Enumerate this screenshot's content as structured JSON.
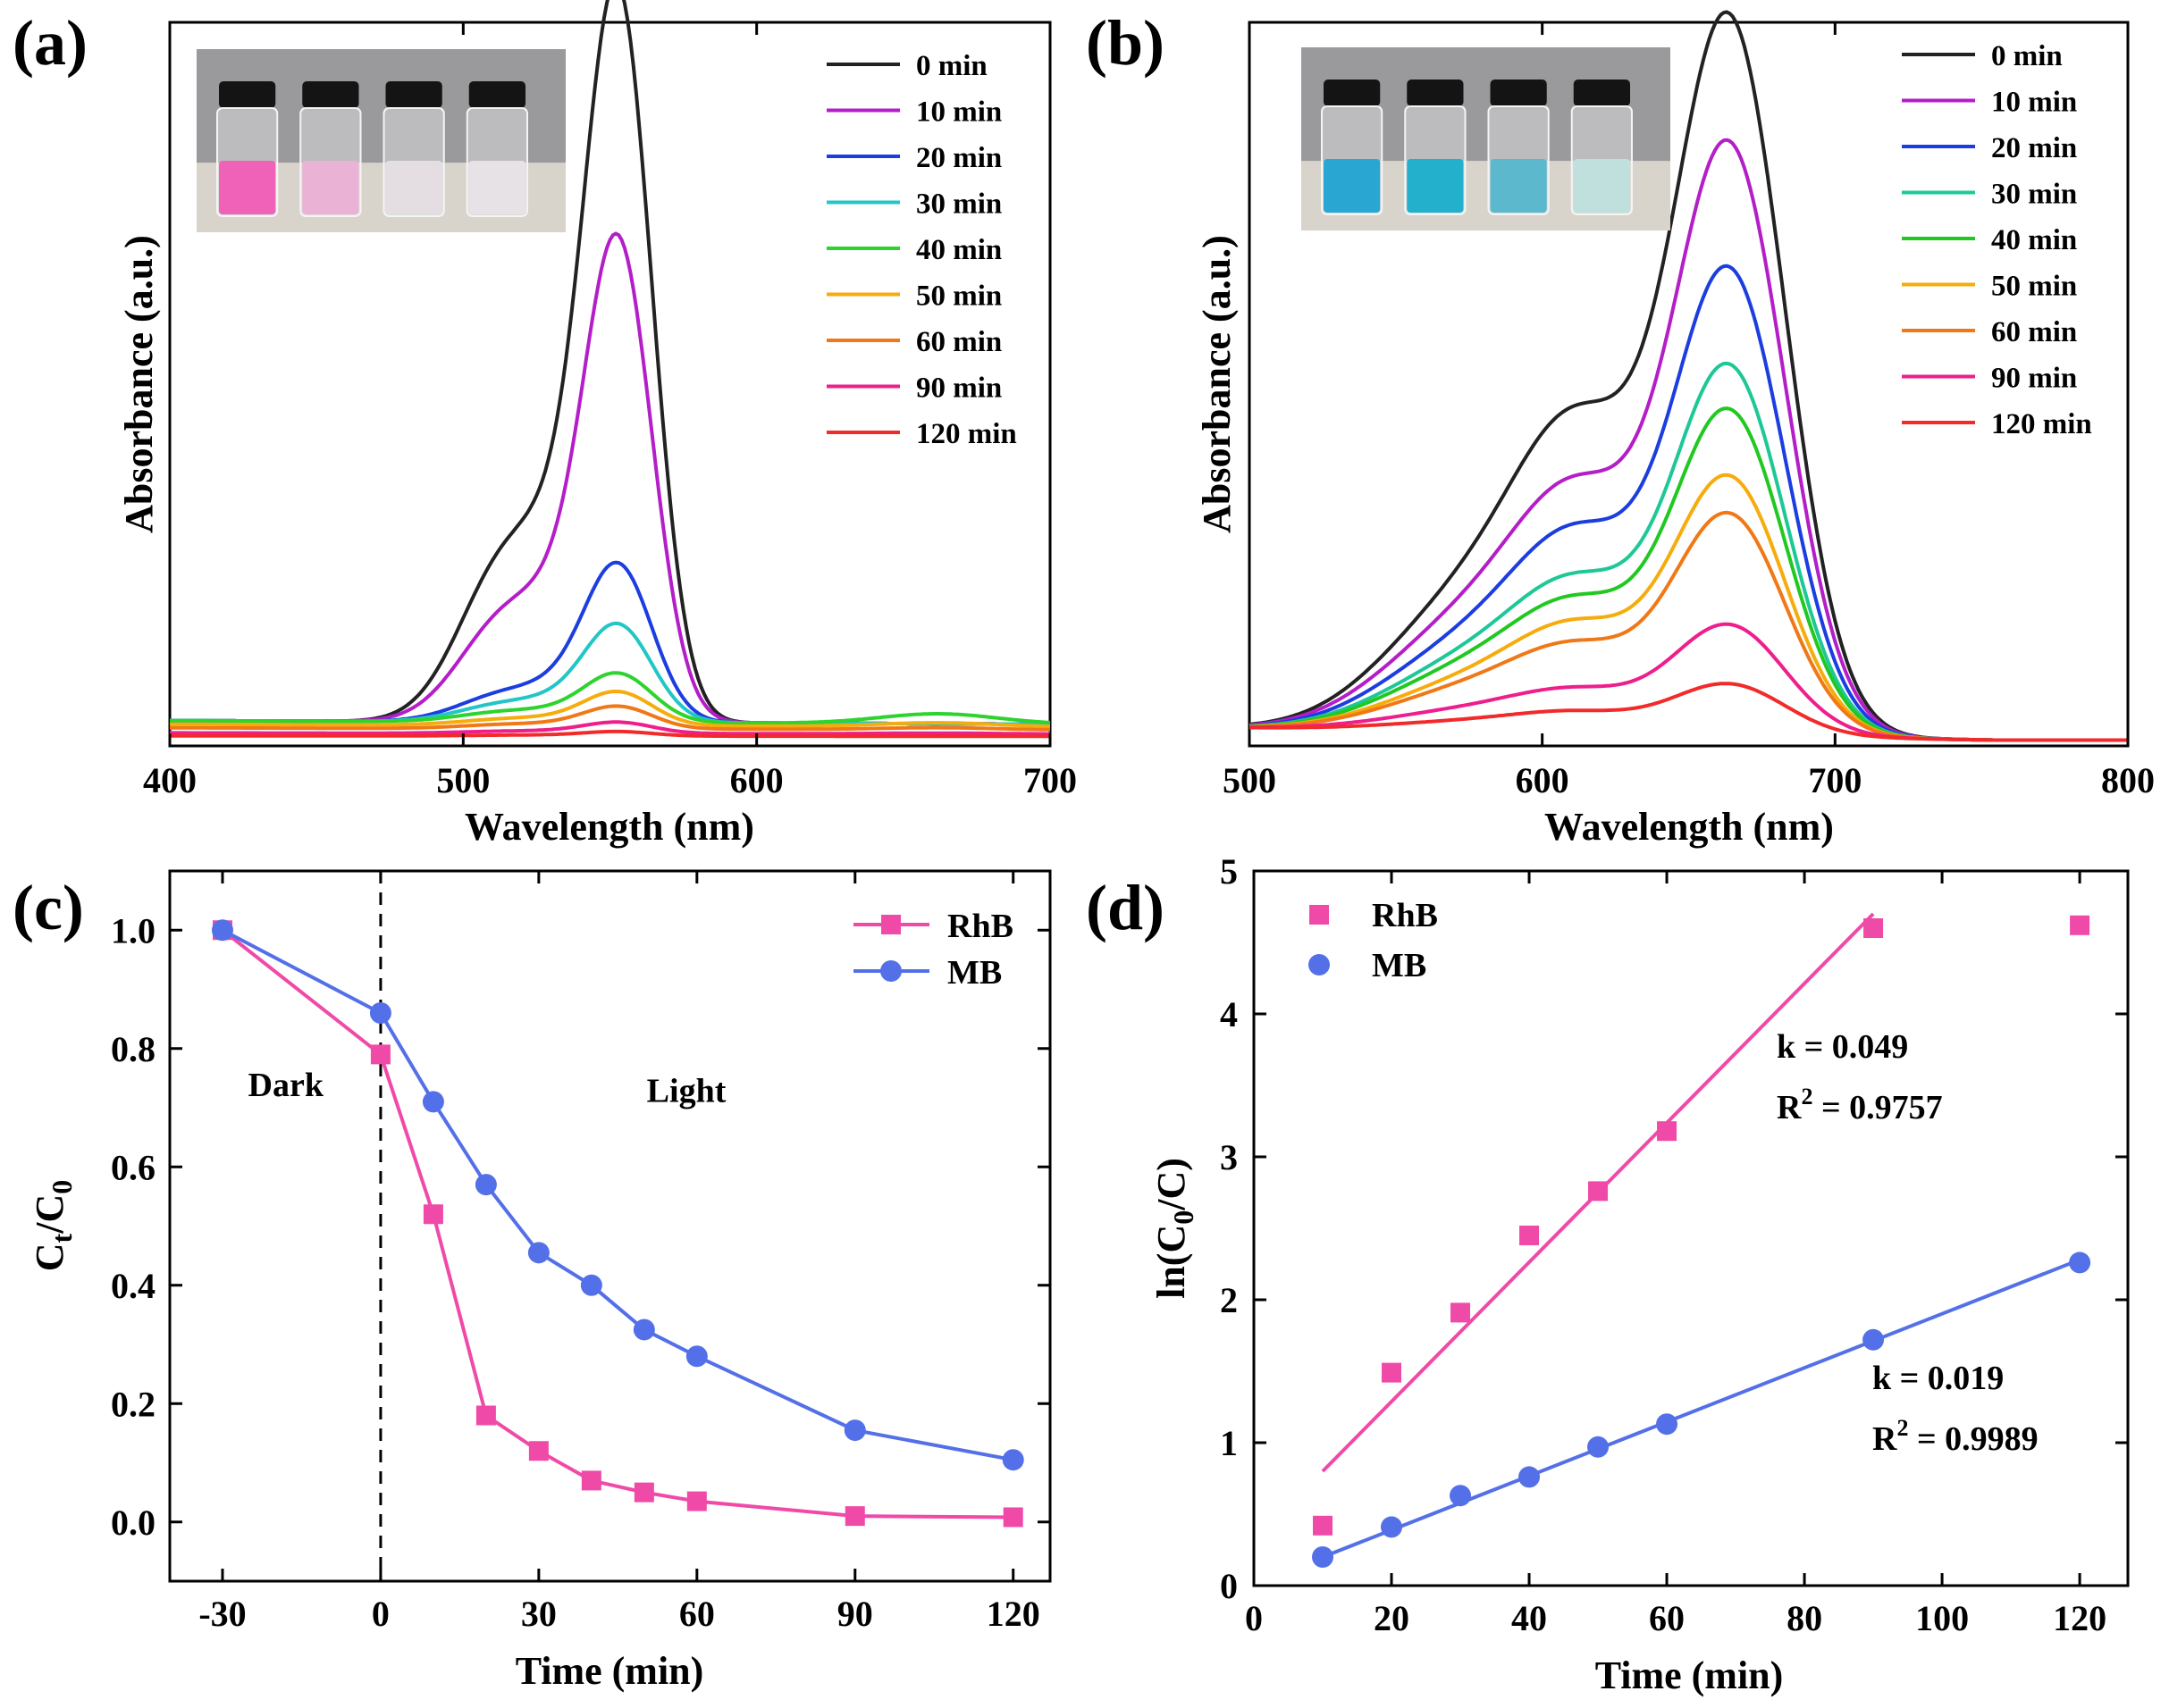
{
  "chart_data": [
    {
      "id": "a",
      "type": "line",
      "panel_label": "(a)",
      "xlabel": "Wavelength (nm)",
      "ylabel": "Absorbance (a.u.)",
      "xlim": [
        400,
        700
      ],
      "ylim": [
        0,
        1.0
      ],
      "xticks": [
        400,
        500,
        600,
        700
      ],
      "grid": false,
      "legend_position": "top-right",
      "inset": "photo of four vials with RhB solution (pink to clear)",
      "inset_colors": [
        "#f062b8",
        "#eab3d6",
        "#e4dee2",
        "#e6e2e6"
      ],
      "peaks": [
        {
          "name": "0 min",
          "color": "#222222",
          "peak": 0.97,
          "shoulder": 0.4,
          "tail": 0.0,
          "base": 0.025
        },
        {
          "name": "10 min",
          "color": "#b41ec8",
          "peak": 0.64,
          "shoulder": 0.26,
          "tail": 0.0,
          "base": 0.025
        },
        {
          "name": "20 min",
          "color": "#1c3de0",
          "peak": 0.21,
          "shoulder": 0.07,
          "tail": 0.0,
          "base": 0.025
        },
        {
          "name": "30 min",
          "color": "#22c6c6",
          "peak": 0.13,
          "shoulder": 0.045,
          "tail": 0.0,
          "base": 0.025
        },
        {
          "name": "40 min",
          "color": "#2ed32e",
          "peak": 0.065,
          "shoulder": 0.025,
          "tail": 0.025,
          "base": 0.025
        },
        {
          "name": "50 min",
          "color": "#f5ac0c",
          "peak": 0.045,
          "shoulder": 0.015,
          "tail": 0.01,
          "base": 0.02
        },
        {
          "name": "60 min",
          "color": "#f07816",
          "peak": 0.03,
          "shoulder": 0.01,
          "tail": 0.005,
          "base": 0.015
        },
        {
          "name": "90 min",
          "color": "#ee1e8c",
          "peak": 0.015,
          "shoulder": 0.005,
          "tail": 0.002,
          "base": 0.008
        },
        {
          "name": "120 min",
          "color": "#f22a2a",
          "peak": 0.006,
          "shoulder": 0.002,
          "tail": 0.0,
          "base": 0.004
        }
      ],
      "peak_nm": 553,
      "shoulder_nm": 515
    },
    {
      "id": "b",
      "type": "line",
      "panel_label": "(b)",
      "xlabel": "Wavelength (nm)",
      "ylabel": "Absorbance (a.u.)",
      "xlim": [
        500,
        800
      ],
      "ylim": [
        0,
        1.0
      ],
      "xticks": [
        500,
        600,
        700,
        800
      ],
      "grid": false,
      "legend_position": "top-right",
      "inset": "photo of four vials with MB solution (blue to pale)",
      "inset_colors": [
        "#2aa6d2",
        "#22b0cc",
        "#5cb8cc",
        "#bfe0dc"
      ],
      "peaks": [
        {
          "name": "0 min",
          "color": "#222222",
          "peak": 0.97,
          "shoulder": 0.58,
          "base": 0.01
        },
        {
          "name": "10 min",
          "color": "#b41ec8",
          "peak": 0.8,
          "shoulder": 0.45,
          "base": 0.01
        },
        {
          "name": "20 min",
          "color": "#1c3de0",
          "peak": 0.63,
          "shoulder": 0.37,
          "base": 0.01
        },
        {
          "name": "30 min",
          "color": "#1ec896",
          "peak": 0.5,
          "shoulder": 0.28,
          "base": 0.01
        },
        {
          "name": "40 min",
          "color": "#22c822",
          "peak": 0.44,
          "shoulder": 0.24,
          "base": 0.01
        },
        {
          "name": "50 min",
          "color": "#f5ac0c",
          "peak": 0.35,
          "shoulder": 0.2,
          "base": 0.01
        },
        {
          "name": "60 min",
          "color": "#f07816",
          "peak": 0.3,
          "shoulder": 0.16,
          "base": 0.01
        },
        {
          "name": "90 min",
          "color": "#ee1e8c",
          "peak": 0.15,
          "shoulder": 0.08,
          "base": 0.01
        },
        {
          "name": "120 min",
          "color": "#f22a2a",
          "peak": 0.07,
          "shoulder": 0.04,
          "base": 0.01
        }
      ],
      "peak_nm": 664,
      "shoulder_nm": 614
    },
    {
      "id": "c",
      "type": "line",
      "panel_label": "(c)",
      "xlabel": "Time (min)",
      "ylabel_main": "C",
      "ylabel_sub1": "t",
      "ylabel_slash": "/C",
      "ylabel_sub2": "0",
      "xlim": [
        -40,
        127
      ],
      "ylim": [
        -0.1,
        1.1
      ],
      "xticks": [
        -30,
        0,
        30,
        60,
        90,
        120
      ],
      "yticks": [
        0.0,
        0.2,
        0.4,
        0.6,
        0.8,
        1.0
      ],
      "ytick_labels": [
        "0.0",
        "0.2",
        "0.4",
        "0.6",
        "0.8",
        "1.0"
      ],
      "grid": false,
      "legend_position": "top-right",
      "annotations": [
        {
          "text": "Dark",
          "x": -18,
          "y": 0.72
        },
        {
          "text": "Light",
          "x": 58,
          "y": 0.71
        }
      ],
      "divider_x": 0,
      "series": [
        {
          "name": "RhB",
          "color": "#f04aa8",
          "marker": "square",
          "x": [
            -30,
            0,
            10,
            20,
            30,
            40,
            50,
            60,
            90,
            120
          ],
          "y": [
            1.0,
            0.79,
            0.52,
            0.18,
            0.12,
            0.07,
            0.05,
            0.035,
            0.01,
            0.008
          ]
        },
        {
          "name": "MB",
          "color": "#5470e8",
          "marker": "circle",
          "x": [
            -30,
            0,
            10,
            20,
            30,
            40,
            50,
            60,
            90,
            120
          ],
          "y": [
            1.0,
            0.86,
            0.71,
            0.57,
            0.455,
            0.4,
            0.325,
            0.28,
            0.155,
            0.105
          ]
        }
      ]
    },
    {
      "id": "d",
      "type": "scatter",
      "panel_label": "(d)",
      "xlabel": "Time (min)",
      "ylabel_pre": "ln(C",
      "ylabel_sub": "0",
      "ylabel_post": "/C)",
      "xlim": [
        0,
        127
      ],
      "ylim": [
        0,
        5
      ],
      "xticks": [
        0,
        20,
        40,
        60,
        80,
        100,
        120
      ],
      "yticks": [
        0,
        1,
        2,
        3,
        4,
        5
      ],
      "grid": false,
      "legend_position": "top-left",
      "series": [
        {
          "name": "RhB",
          "color": "#f04aa8",
          "marker": "square",
          "x": [
            10,
            20,
            30,
            40,
            50,
            60,
            90,
            120
          ],
          "y": [
            0.42,
            1.49,
            1.91,
            2.45,
            2.76,
            3.18,
            4.6,
            4.62
          ],
          "fit": {
            "x": [
              10,
              90
            ],
            "y": [
              0.8,
              4.7
            ]
          },
          "k_text": "k = 0.049",
          "r2_prefix": "R",
          "r2_sup": "2",
          "r2_value": " = 0.9757"
        },
        {
          "name": "MB",
          "color": "#5470e8",
          "marker": "circle",
          "x": [
            10,
            20,
            30,
            40,
            50,
            60,
            90,
            120
          ],
          "y": [
            0.2,
            0.41,
            0.63,
            0.76,
            0.97,
            1.13,
            1.72,
            2.26
          ],
          "fit": {
            "x": [
              10,
              120
            ],
            "y": [
              0.2,
              2.28
            ]
          },
          "k_text": "k = 0.019",
          "r2_prefix": "R",
          "r2_sup": "2",
          "r2_value": " = 0.9989"
        }
      ]
    }
  ]
}
